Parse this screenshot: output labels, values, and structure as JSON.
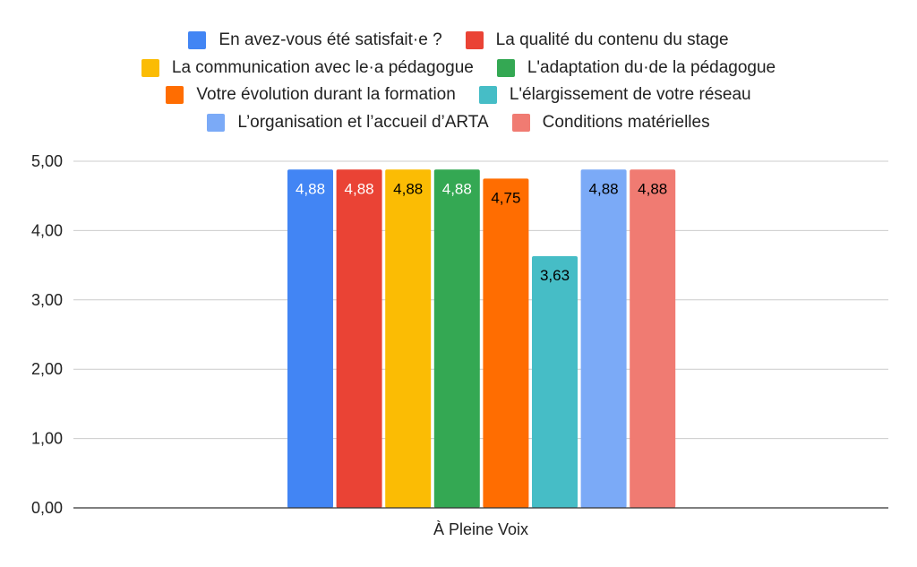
{
  "chart_data": {
    "type": "bar",
    "title": "",
    "categories": [
      "À Pleine Voix"
    ],
    "series": [
      {
        "name": "En avez-vous été satisfait·e ?",
        "values": [
          4.88
        ],
        "label": "4,88",
        "color": "#4285f4",
        "label_color": "#ffffff"
      },
      {
        "name": "La qualité du contenu du stage",
        "values": [
          4.88
        ],
        "label": "4,88",
        "color": "#ea4335",
        "label_color": "#ffffff"
      },
      {
        "name": "La communication avec le·a pédagogue",
        "values": [
          4.88
        ],
        "label": "4,88",
        "color": "#fbbc04",
        "label_color": "#000000"
      },
      {
        "name": "L'adaptation du·de la pédagogue",
        "values": [
          4.88
        ],
        "label": "4,88",
        "color": "#34a853",
        "label_color": "#ffffff"
      },
      {
        "name": "Votre évolution durant la formation",
        "values": [
          4.75
        ],
        "label": "4,75",
        "color": "#ff6d01",
        "label_color": "#000000"
      },
      {
        "name": "L'élargissement de votre réseau",
        "values": [
          3.63
        ],
        "label": "3,63",
        "color": "#46bdc6",
        "label_color": "#000000"
      },
      {
        "name": "L’organisation et l’accueil d’ARTA",
        "values": [
          4.88
        ],
        "label": "4,88",
        "color": "#7baaf7",
        "label_color": "#000000"
      },
      {
        "name": "Conditions matérielles",
        "values": [
          4.88
        ],
        "label": "4,88",
        "color": "#f07b72",
        "label_color": "#000000"
      }
    ],
    "legend_rows": [
      [
        0,
        1
      ],
      [
        2,
        3
      ],
      [
        4,
        5
      ],
      [
        6,
        7
      ]
    ],
    "legend_position": "top",
    "ylim": [
      0,
      5
    ],
    "yticks": [
      0,
      1,
      2,
      3,
      4,
      5
    ],
    "ytick_labels": [
      "0,00",
      "1,00",
      "2,00",
      "3,00",
      "4,00",
      "5,00"
    ],
    "grid": true,
    "xlabel": "",
    "ylabel": ""
  }
}
